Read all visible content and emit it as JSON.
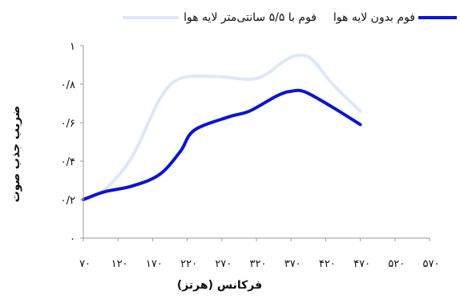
{
  "chart_data": {
    "type": "line",
    "title": "",
    "xlabel": "فرکانس (هرتز)",
    "ylabel": "ضریب جذب صوت",
    "xlim": [
      70,
      570
    ],
    "ylim": [
      0,
      1
    ],
    "x_ticks": [
      70,
      120,
      170,
      220,
      270,
      320,
      370,
      420,
      470,
      520,
      570
    ],
    "x_tick_labels": [
      "۷۰",
      "۱۲۰",
      "۱۷۰",
      "۲۲۰",
      "۲۷۰",
      "۳۲۰",
      "۳۷۰",
      "۴۲۰",
      "۴۷۰",
      "۵۲۰",
      "۵۷۰"
    ],
    "y_ticks": [
      0,
      0.2,
      0.4,
      0.6,
      0.8,
      1
    ],
    "y_tick_labels": [
      "۰",
      "۰/۲",
      "۰/۴",
      "۰/۶",
      "۰/۸",
      "۱"
    ],
    "grid": false,
    "legend_position": "top",
    "series": [
      {
        "name": "فوم با ۵/۵ سانتی‌متر لایه هوا",
        "color": "#dbe9f7",
        "x": [
          70,
          100,
          140,
          180,
          210,
          260,
          320,
          360,
          380,
          400,
          430,
          470
        ],
        "y": [
          0.2,
          0.25,
          0.42,
          0.72,
          0.83,
          0.84,
          0.83,
          0.92,
          0.95,
          0.93,
          0.8,
          0.66
        ]
      },
      {
        "name": "فوم بدون  لایه هوا",
        "color": "#0b14d6",
        "x": [
          70,
          100,
          140,
          180,
          210,
          230,
          280,
          310,
          350,
          370,
          390,
          430,
          470
        ],
        "y": [
          0.2,
          0.24,
          0.27,
          0.33,
          0.45,
          0.56,
          0.63,
          0.66,
          0.74,
          0.763,
          0.76,
          0.68,
          0.59
        ]
      }
    ]
  }
}
